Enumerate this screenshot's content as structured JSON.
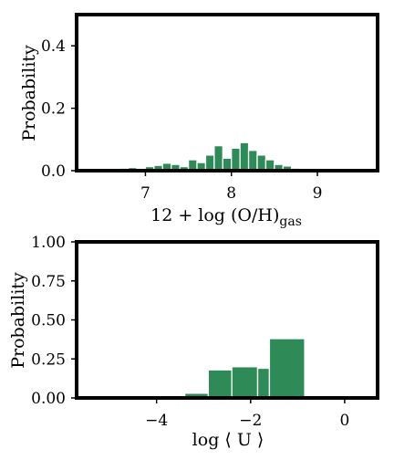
{
  "colors": {
    "bar": "#2e8b57",
    "frame": "#000000"
  },
  "chart_data": [
    {
      "type": "bar",
      "histogram": true,
      "ylabel": "Probability",
      "xlabel_main": "12 + log (O/H)",
      "xlabel_sub": "gas",
      "xlim": [
        6.2,
        9.7
      ],
      "ylim": [
        0,
        0.5
      ],
      "xticks": [
        7,
        8,
        9
      ],
      "xtick_labels": [
        "7",
        "8",
        "9"
      ],
      "yticks": [
        0.0,
        0.2,
        0.4
      ],
      "ytick_labels": [
        "0.0",
        "0.2",
        "0.4"
      ],
      "bin_width": 0.1,
      "bins": [
        {
          "x0": 6.6,
          "value": 0.003
        },
        {
          "x0": 6.7,
          "value": 0.008
        },
        {
          "x0": 6.8,
          "value": 0.01
        },
        {
          "x0": 6.9,
          "value": 0.006
        },
        {
          "x0": 7.0,
          "value": 0.013
        },
        {
          "x0": 7.1,
          "value": 0.017
        },
        {
          "x0": 7.2,
          "value": 0.024
        },
        {
          "x0": 7.3,
          "value": 0.02
        },
        {
          "x0": 7.4,
          "value": 0.013
        },
        {
          "x0": 7.5,
          "value": 0.035
        },
        {
          "x0": 7.6,
          "value": 0.026
        },
        {
          "x0": 7.7,
          "value": 0.05
        },
        {
          "x0": 7.8,
          "value": 0.08
        },
        {
          "x0": 7.9,
          "value": 0.04
        },
        {
          "x0": 8.0,
          "value": 0.072
        },
        {
          "x0": 8.1,
          "value": 0.09
        },
        {
          "x0": 8.2,
          "value": 0.065
        },
        {
          "x0": 8.3,
          "value": 0.05
        },
        {
          "x0": 8.4,
          "value": 0.035
        },
        {
          "x0": 8.5,
          "value": 0.02
        },
        {
          "x0": 8.6,
          "value": 0.015
        },
        {
          "x0": 8.7,
          "value": 0.008
        },
        {
          "x0": 8.8,
          "value": 0.005
        },
        {
          "x0": 8.9,
          "value": 0.002
        }
      ]
    },
    {
      "type": "bar",
      "histogram": true,
      "ylabel": "Probability",
      "xlabel": "log ⟨ U ⟩",
      "xlim": [
        -5.7,
        0.7
      ],
      "ylim": [
        0,
        1.0
      ],
      "xticks": [
        -4,
        -2,
        0
      ],
      "xtick_labels": [
        "−4",
        "−2",
        "0"
      ],
      "yticks": [
        0.0,
        0.25,
        0.5,
        0.75,
        1.0
      ],
      "ytick_labels": [
        "0.00",
        "0.25",
        "0.50",
        "0.75",
        "1.00"
      ],
      "bins": [
        {
          "x0": -3.4,
          "x1": -2.9,
          "value": 0.03
        },
        {
          "x0": -2.9,
          "x1": -2.4,
          "value": 0.18
        },
        {
          "x0": -2.4,
          "x1": -1.85,
          "value": 0.2
        },
        {
          "x0": -1.85,
          "x1": -1.6,
          "value": 0.19
        },
        {
          "x0": -1.6,
          "x1": -0.85,
          "value": 0.38
        }
      ]
    }
  ]
}
